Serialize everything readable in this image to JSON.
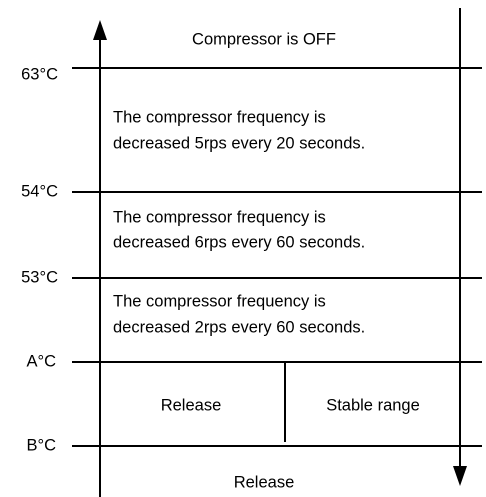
{
  "levels": [
    "63°C",
    "54°C",
    "53°C",
    "A°C",
    "B°C"
  ],
  "zones": [
    {
      "lines": [
        "Compressor is OFF"
      ]
    },
    {
      "lines": [
        "The compressor frequency is",
        "decreased 5rps every 20 seconds."
      ]
    },
    {
      "lines": [
        "The compressor frequency is",
        "decreased 6rps every 60 seconds."
      ]
    },
    {
      "lines": [
        "The compressor frequency is",
        "decreased 2rps every 60 seconds."
      ]
    },
    {
      "left": "Release",
      "right": "Stable range"
    },
    {
      "lines": [
        "Release"
      ]
    }
  ]
}
